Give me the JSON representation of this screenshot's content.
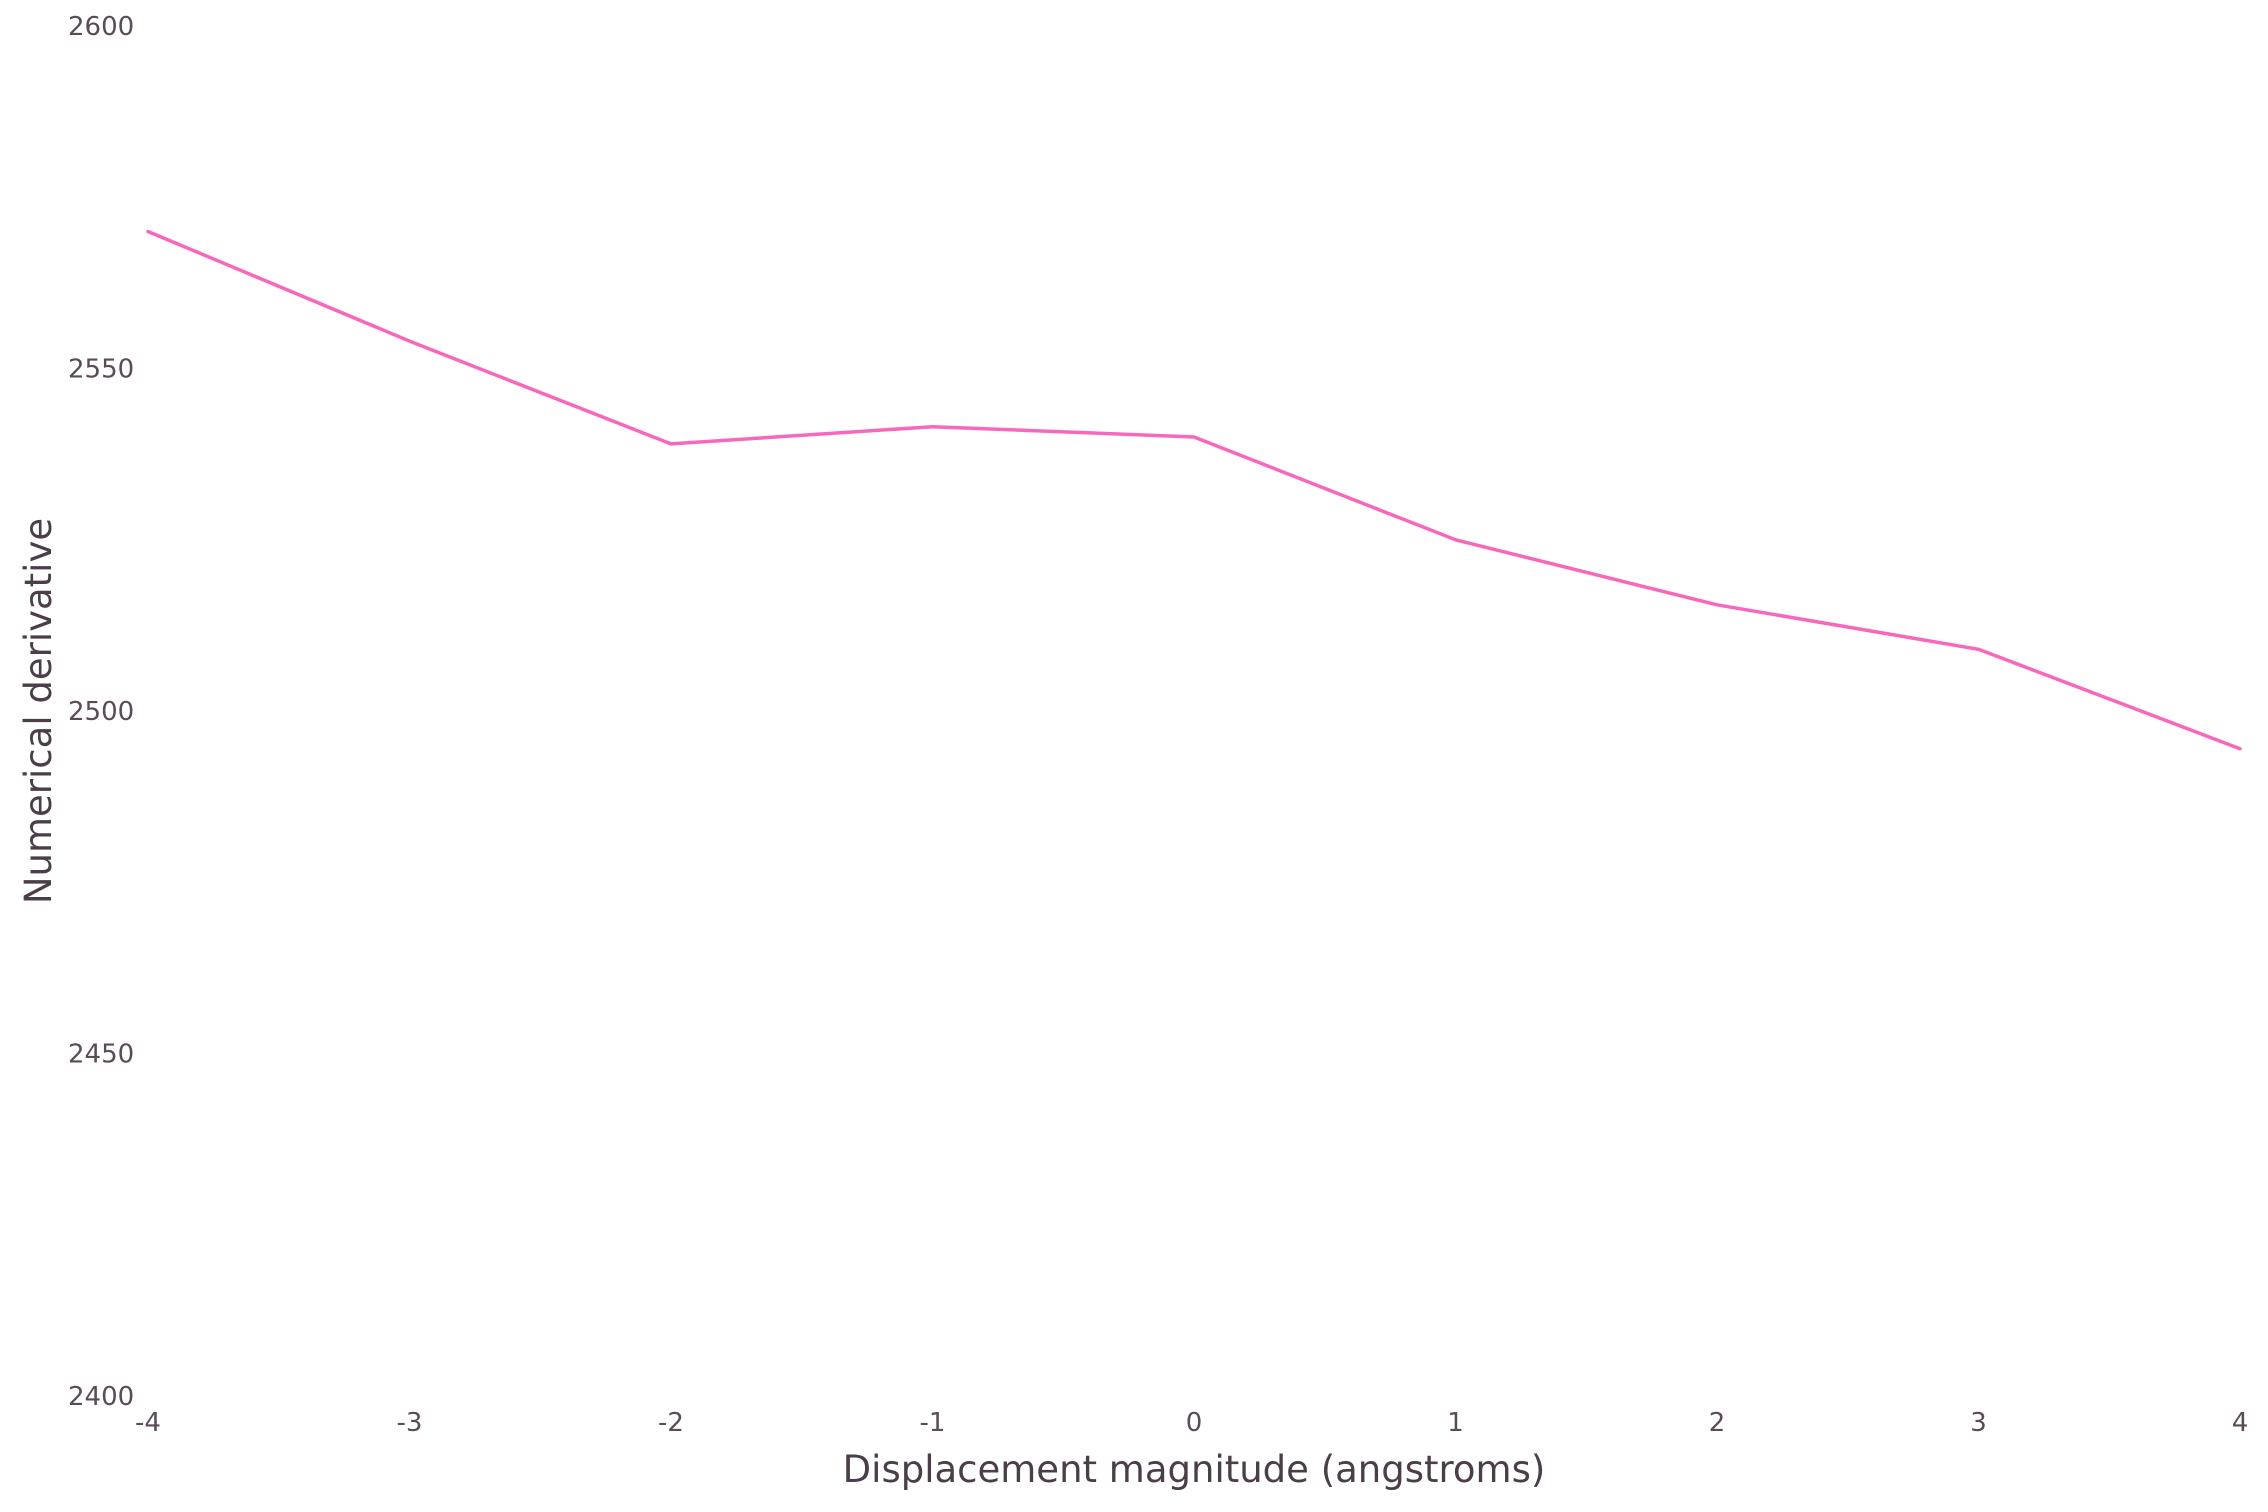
{
  "colors": {
    "line": "#f768bd",
    "tick_text": "#5a4c57",
    "axis_text": "#4a3f48",
    "background": "#ffffff"
  },
  "chart_data": {
    "type": "line",
    "title": "",
    "xlabel": "Displacement magnitude (angstroms)",
    "ylabel": "Numerical derivative",
    "xlim": [
      -4,
      4
    ],
    "ylim": [
      2400,
      2600
    ],
    "x_ticks": [
      "-4",
      "-3",
      "-2",
      "-1",
      "0",
      "1",
      "2",
      "3",
      "4"
    ],
    "y_ticks": [
      "2400",
      "2450",
      "2500",
      "2550",
      "2600"
    ],
    "grid": false,
    "legend": "none",
    "series": [
      {
        "x": [
          -4,
          -3,
          -2,
          -1,
          0,
          1,
          2,
          3,
          4
        ],
        "y": [
          2570,
          2554,
          2539,
          2541.5,
          2540,
          2525,
          2515.5,
          2509,
          2494.5
        ]
      }
    ]
  }
}
